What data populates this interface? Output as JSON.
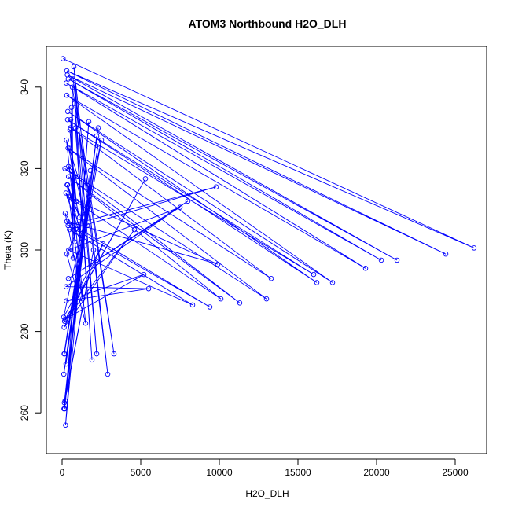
{
  "chart_data": {
    "type": "line",
    "title": "ATOM3 Northbound H2O_DLH",
    "xlabel": "H2O_DLH",
    "ylabel": "Theta (K)",
    "xlim": [
      -1000,
      27000
    ],
    "ylim": [
      250,
      350
    ],
    "x_ticks": [
      0,
      5000,
      10000,
      15000,
      20000,
      25000
    ],
    "y_ticks": [
      260,
      280,
      300,
      320,
      340
    ],
    "grid": false,
    "series_color": "#0000ff",
    "marker": "open-circle",
    "series": [
      {
        "x": [
          60,
          26200,
          300,
          24400,
          330,
          21300,
          390,
          20300,
          260,
          19300,
          300,
          17200,
          360,
          16200,
          350,
          16000,
          530,
          13300,
          380,
          13000,
          180,
          11300,
          410,
          10100,
          450,
          9900,
          300,
          9400,
          380,
          9800,
          470,
          8300,
          420,
          7500,
          400,
          8000,
          260,
          5500,
          270,
          5200,
          200,
          5300,
          160,
          4600,
          130,
          2600,
          100,
          2500,
          130,
          2300,
          150,
          2300,
          110,
          2200,
          190,
          2000,
          140,
          1800,
          120,
          1600,
          160,
          1700,
          220,
          1500,
          250,
          1600,
          300,
          1500,
          280,
          1600,
          240,
          1400,
          200,
          1300,
          320,
          1200,
          350,
          1100,
          410,
          1000,
          460,
          900,
          500,
          850,
          550,
          800,
          600,
          700,
          650,
          3300,
          700,
          2900,
          750,
          2200,
          800,
          1900,
          850
        ],
        "y": [
          347,
          300.5,
          344,
          299,
          343,
          297.5,
          342,
          297.5,
          341,
          295.5,
          338,
          292,
          334,
          292,
          332,
          294,
          330,
          293,
          325,
          288,
          320,
          287,
          318,
          288,
          313,
          296.5,
          307,
          286,
          306,
          315.5,
          305,
          286.5,
          300,
          310.5,
          293,
          312,
          291,
          290.5,
          287.5,
          294,
          283,
          317.5,
          282.5,
          305,
          281,
          301.5,
          283.5,
          327,
          274.5,
          330,
          274.5,
          326,
          269.5,
          328,
          263,
          300,
          262.5,
          319.5,
          261,
          310.5,
          261,
          331.5,
          257,
          309,
          272,
          310.5,
          299,
          282,
          327,
          306,
          314,
          301,
          309,
          288,
          316,
          304,
          316,
          308,
          320.5,
          318,
          325,
          312,
          329.5,
          310,
          332,
          302,
          335,
          298,
          340,
          274.5,
          342,
          269.5,
          345,
          274.5,
          336,
          273,
          330
        ]
      }
    ]
  }
}
